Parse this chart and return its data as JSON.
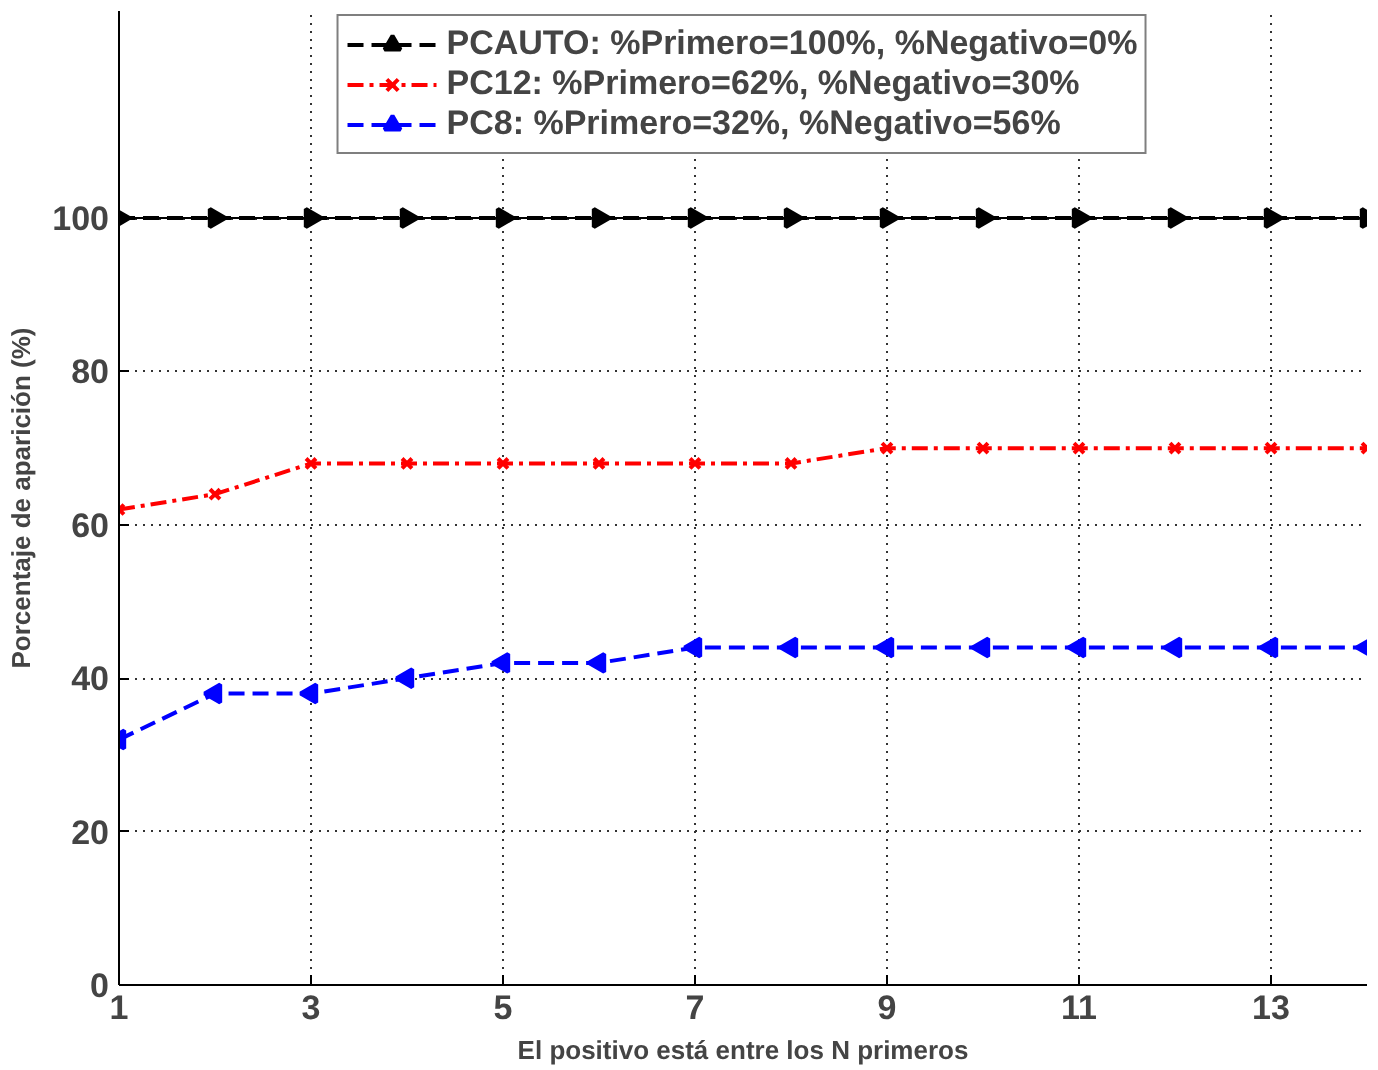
{
  "chart_data": {
    "type": "line",
    "xlabel": "El positivo está entre los N primeros",
    "ylabel": "Porcentaje de aparición (%)",
    "x": [
      1,
      2,
      3,
      4,
      5,
      6,
      7,
      8,
      9,
      10,
      11,
      12,
      13,
      14
    ],
    "xlim": [
      1,
      14
    ],
    "xticks": [
      1,
      3,
      5,
      7,
      9,
      11,
      13
    ],
    "ylim": [
      0,
      100
    ],
    "yticks": [
      0,
      20,
      40,
      60,
      80,
      100
    ],
    "grid": true,
    "legend": "top",
    "line_style": "dashed",
    "series": [
      {
        "name": "PCAUTO: %Primero=100%, %Negativo=0%",
        "color": "#000000",
        "marker": "triangle",
        "values": [
          100,
          100,
          100,
          100,
          100,
          100,
          100,
          100,
          100,
          100,
          100,
          100,
          100,
          100
        ]
      },
      {
        "name": "PC12: %Primero=62%, %Negativo=30%",
        "color": "#ff0000",
        "marker": "cross",
        "values": [
          62,
          64,
          68,
          68,
          68,
          68,
          68,
          68,
          70,
          70,
          70,
          70,
          70,
          70
        ]
      },
      {
        "name": "PC8: %Primero=32%, %Negativo=56%",
        "color": "#0000ff",
        "marker": "triangle",
        "values": [
          32,
          38,
          38,
          40,
          42,
          42,
          44,
          44,
          44,
          44,
          44,
          44,
          44,
          44
        ]
      }
    ]
  }
}
